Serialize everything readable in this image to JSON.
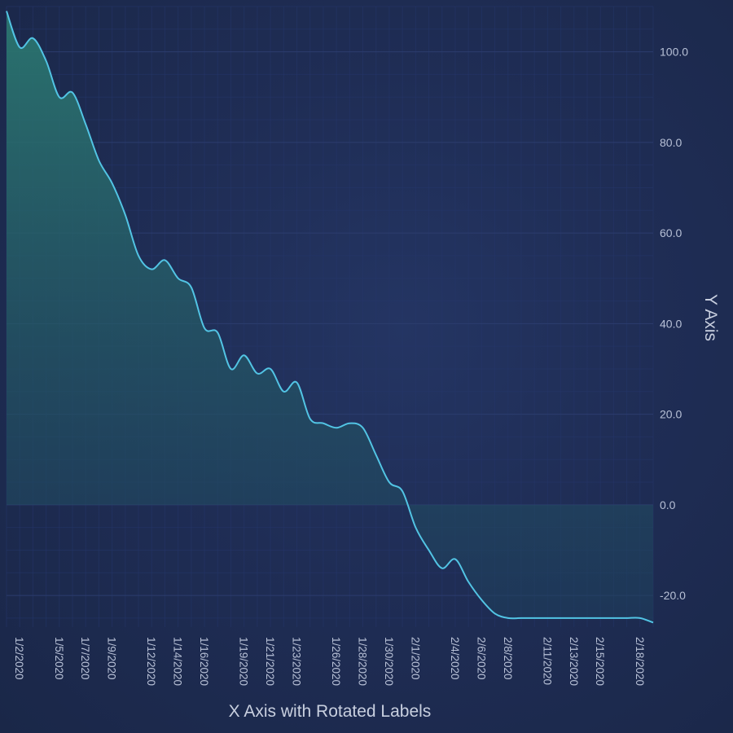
{
  "chart_data": {
    "type": "area",
    "title": "",
    "xlabel": "X Axis with Rotated Labels",
    "ylabel": "Y Axis",
    "ylim": [
      -27,
      110
    ],
    "xlim": [
      "2020-01-01",
      "2020-02-19"
    ],
    "grid": true,
    "legend": "none",
    "y_ticks": [
      "-20.0",
      "0.0",
      "20.0",
      "40.0",
      "60.0",
      "80.0",
      "100.0"
    ],
    "x_ticks": [
      "1/2/2020",
      "1/5/2020",
      "1/7/2020",
      "1/9/2020",
      "1/12/2020",
      "1/14/2020",
      "1/16/2020",
      "1/19/2020",
      "1/21/2020",
      "1/23/2020",
      "1/26/2020",
      "1/28/2020",
      "1/30/2020",
      "2/1/2020",
      "2/4/2020",
      "2/6/2020",
      "2/8/2020",
      "2/11/2020",
      "2/13/2020",
      "2/15/2020",
      "2/18/2020"
    ],
    "series": [
      {
        "x": [
          "2020-01-01",
          "2020-01-02",
          "2020-01-03",
          "2020-01-04",
          "2020-01-05",
          "2020-01-06",
          "2020-01-07",
          "2020-01-08",
          "2020-01-09",
          "2020-01-10",
          "2020-01-11",
          "2020-01-12",
          "2020-01-13",
          "2020-01-14",
          "2020-01-15",
          "2020-01-16",
          "2020-01-17",
          "2020-01-18",
          "2020-01-19",
          "2020-01-20",
          "2020-01-21",
          "2020-01-22",
          "2020-01-23",
          "2020-01-24",
          "2020-01-25",
          "2020-01-26",
          "2020-01-27",
          "2020-01-28",
          "2020-01-29",
          "2020-01-30",
          "2020-01-31",
          "2020-02-01",
          "2020-02-02",
          "2020-02-03",
          "2020-02-04",
          "2020-02-05",
          "2020-02-06",
          "2020-02-07",
          "2020-02-08",
          "2020-02-09",
          "2020-02-10",
          "2020-02-11",
          "2020-02-12",
          "2020-02-13",
          "2020-02-14",
          "2020-02-15",
          "2020-02-16",
          "2020-02-17",
          "2020-02-18",
          "2020-02-19"
        ],
        "values": [
          109,
          101,
          103,
          98,
          90,
          91,
          84,
          76,
          71,
          64,
          55,
          52,
          54,
          50,
          48,
          39,
          38,
          30,
          33,
          29,
          30,
          25,
          27,
          19,
          18,
          17,
          18,
          17,
          11,
          5,
          3,
          -5,
          -10,
          -14,
          -12,
          -17,
          -21,
          -24,
          -25,
          -25,
          -25,
          -25,
          -25,
          -25,
          -25,
          -25,
          -25,
          -25,
          -25,
          -26
        ]
      }
    ],
    "colors": {
      "line": "#52c4e4",
      "fill_top": "#2b7770",
      "fill_bottom": "#1e3e5c",
      "text": "#b7c0d6"
    }
  }
}
